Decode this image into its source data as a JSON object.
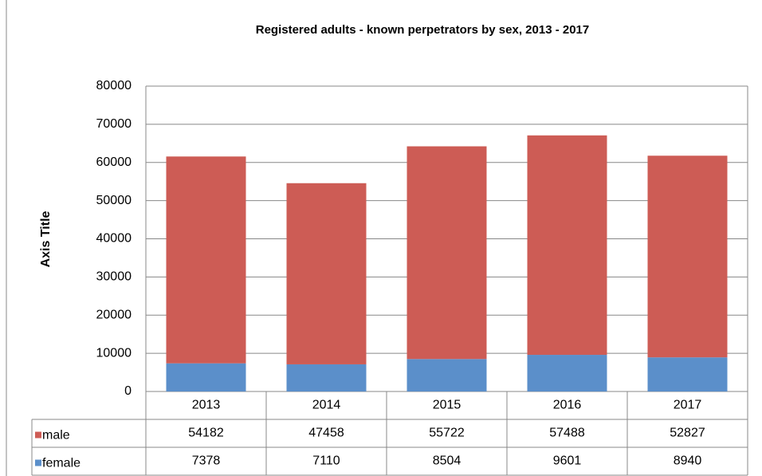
{
  "chart_data": {
    "type": "stacked_bar",
    "title": "Registered adults - known perpetrators by sex, 2013 - 2017",
    "y_axis_label": "Axis Title",
    "categories": [
      "2013",
      "2014",
      "2015",
      "2016",
      "2017"
    ],
    "series": [
      {
        "name": "male",
        "color": "#cd5c55",
        "values": [
          54182,
          47458,
          55722,
          57488,
          52827
        ]
      },
      {
        "name": "female",
        "color": "#5b8fca",
        "values": [
          7378,
          7110,
          8504,
          9601,
          8940
        ]
      }
    ],
    "ylim": [
      0,
      80000
    ],
    "yticks": [
      0,
      10000,
      20000,
      30000,
      40000,
      50000,
      60000,
      70000,
      80000
    ],
    "grid": true
  }
}
